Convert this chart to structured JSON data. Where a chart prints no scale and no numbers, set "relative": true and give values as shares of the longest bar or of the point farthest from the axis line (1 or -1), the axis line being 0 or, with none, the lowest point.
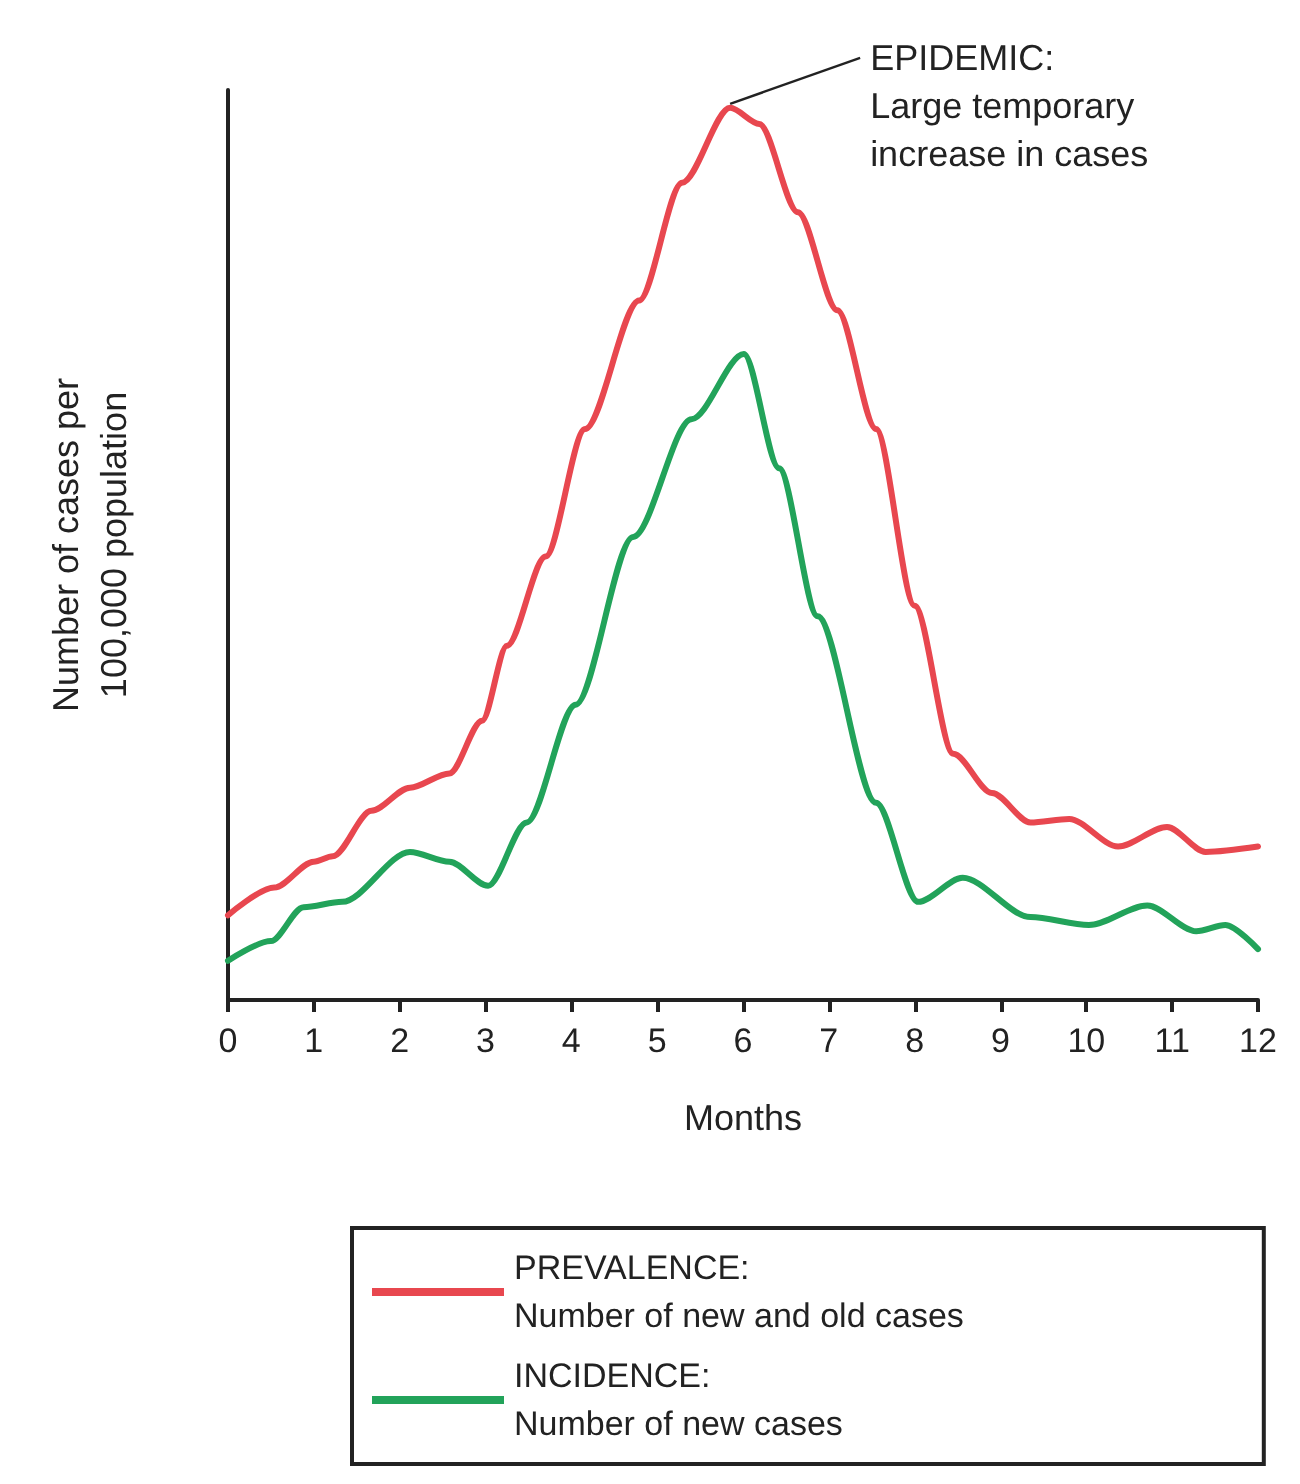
{
  "chart_data": {
    "type": "line",
    "relative": true,
    "xlabel": "Months",
    "ylabel": "Number of cases per\n100,000 population",
    "xlim": [
      0,
      12
    ],
    "xticks": [
      0,
      1,
      2,
      3,
      4,
      5,
      6,
      7,
      8,
      9,
      10,
      11,
      12
    ],
    "grid": false,
    "legend": "bottom",
    "marker": "none",
    "line_style": "solid",
    "annotations": [
      {
        "text": "EPIDEMIC:\nLarge temporary\nincrease in cases",
        "x": 5.85,
        "y": 1.0
      }
    ],
    "series": [
      {
        "name": "PREVALENCE:\nNumber of new and old cases",
        "color": "#e8474f",
        "x": [
          0,
          0.54,
          1.0,
          1.22,
          1.67,
          2.12,
          2.58,
          2.96,
          3.25,
          3.7,
          4.16,
          4.79,
          5.29,
          5.85,
          6.19,
          6.64,
          7.1,
          7.55,
          8.0,
          8.45,
          8.9,
          9.35,
          9.8,
          10.37,
          10.94,
          11.39,
          12
        ],
        "values": [
          0.095,
          0.126,
          0.155,
          0.161,
          0.212,
          0.238,
          0.254,
          0.313,
          0.397,
          0.497,
          0.64,
          0.784,
          0.916,
          1.0,
          0.982,
          0.883,
          0.773,
          0.64,
          0.442,
          0.276,
          0.232,
          0.199,
          0.203,
          0.172,
          0.194,
          0.166,
          0.172
        ]
      },
      {
        "name": "INCIDENCE:\nNumber of new cases",
        "color": "#22a35a",
        "x": [
          0,
          0.5,
          0.88,
          1.33,
          2.12,
          2.58,
          3.03,
          3.48,
          4.05,
          4.72,
          5.4,
          6.01,
          6.42,
          6.87,
          7.55,
          8.04,
          8.56,
          9.35,
          10.03,
          10.71,
          11.28,
          11.62,
          12
        ],
        "values": [
          0.044,
          0.066,
          0.104,
          0.11,
          0.166,
          0.155,
          0.128,
          0.199,
          0.331,
          0.519,
          0.651,
          0.724,
          0.596,
          0.43,
          0.221,
          0.11,
          0.137,
          0.093,
          0.084,
          0.106,
          0.077,
          0.084,
          0.057
        ]
      }
    ]
  }
}
